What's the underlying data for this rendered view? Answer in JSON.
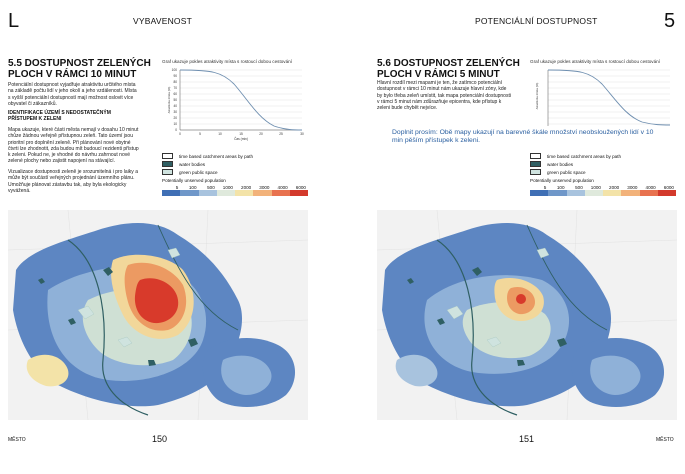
{
  "left": {
    "letter": "L",
    "header": "VYBAVENOST",
    "title": "5.5 DOSTUPNOST ZELENÝCH PLOCH V RÁMCI 10 MINUT",
    "para1": "Potenciální dostupnost vyjadřuje atraktivitu určitého místa na základě počtu lidí v jeho okolí a jeho vzdálenosti. Místa s vyšší potenciální dostupností mají možnost oslovit více obyvatel či zákazníků.",
    "subheading": "IDENTIFIKACE ÚZEMÍ S NEDOSTATEČNÝM PŘÍSTUPEM K ZELENI",
    "para2": "Mapa ukazuje, které části města nemají v dosahu 10 minut chůze žádnou veřejně přístupnou zeleň. Tato území jsou prioritní pro doplnění zeleně. Při plánování nové obytné čtvrti lze zhodnotit, zda budou mít budoucí rezidenti přístup k zeleni. Pokud ne, je vhodné do návrhu zahrnout nové zelené plochy nebo zajistit napojení na stávající.",
    "para3": "Vizualizace dostupnosti zeleně je srozumitelná i pro laiky a může být součástí veřejných projednání územního plánu. Umožňuje plánovat zástavbu tak, aby byla ekologicky vyvážená.",
    "footer_left": "MĚSTO",
    "page_number": "150"
  },
  "right": {
    "header": "POTENCIÁLNÍ DOSTUPNOST",
    "letter": "5",
    "title": "5.6 DOSTUPNOST ZELENÝCH PLOCH V RÁMCI 5 MINUT",
    "para1": "Hlavní rozdíl mezi mapami je ten, že zatímco potenciální dostupnost v rámci 10 minut nám ukazuje hlavní zóny, kde by bylo třeba zeleň umístit, tak mapa potenciální dostupnosti v rámci 5 minut nám zdůrazňuje epicentra, kde přístup k zeleni bude chybět nejvíce.",
    "note": "Doplnit prosím: Obě mapy ukazují na barevné škále množství neobsloužených lidí v 10 min pěším přístupek k zeleni.",
    "footer_right": "MĚSTO",
    "page_number": "151"
  },
  "graph": {
    "title": "Graf ukazuje pokles atraktivity místa s rostoucí dobou cestování",
    "ylabel": "Atraktivita místa (%)",
    "xlabel": "Čas (min)",
    "xticks": [
      "0",
      "5",
      "10",
      "15",
      "20",
      "25",
      "30"
    ],
    "yticks": [
      "100",
      "90",
      "80",
      "70",
      "60",
      "50",
      "40",
      "30",
      "20",
      "10",
      "0"
    ]
  },
  "legend": {
    "items": [
      "time based catchment areas by path",
      "water bodies",
      "green public space"
    ],
    "scale_title": "Potentially unserved population",
    "scale_values": [
      "5",
      "100",
      "500",
      "1000",
      "2000",
      "3000",
      "4000",
      "6000"
    ],
    "scale_colors": [
      "#3f6fb5",
      "#6f97c9",
      "#a8c3de",
      "#dfe9dc",
      "#f3e3a8",
      "#f2b27a",
      "#e8724f",
      "#d33a2c"
    ],
    "swatch_colors": [
      "#ffffff",
      "#2f5f63",
      "#cfe3df"
    ]
  }
}
